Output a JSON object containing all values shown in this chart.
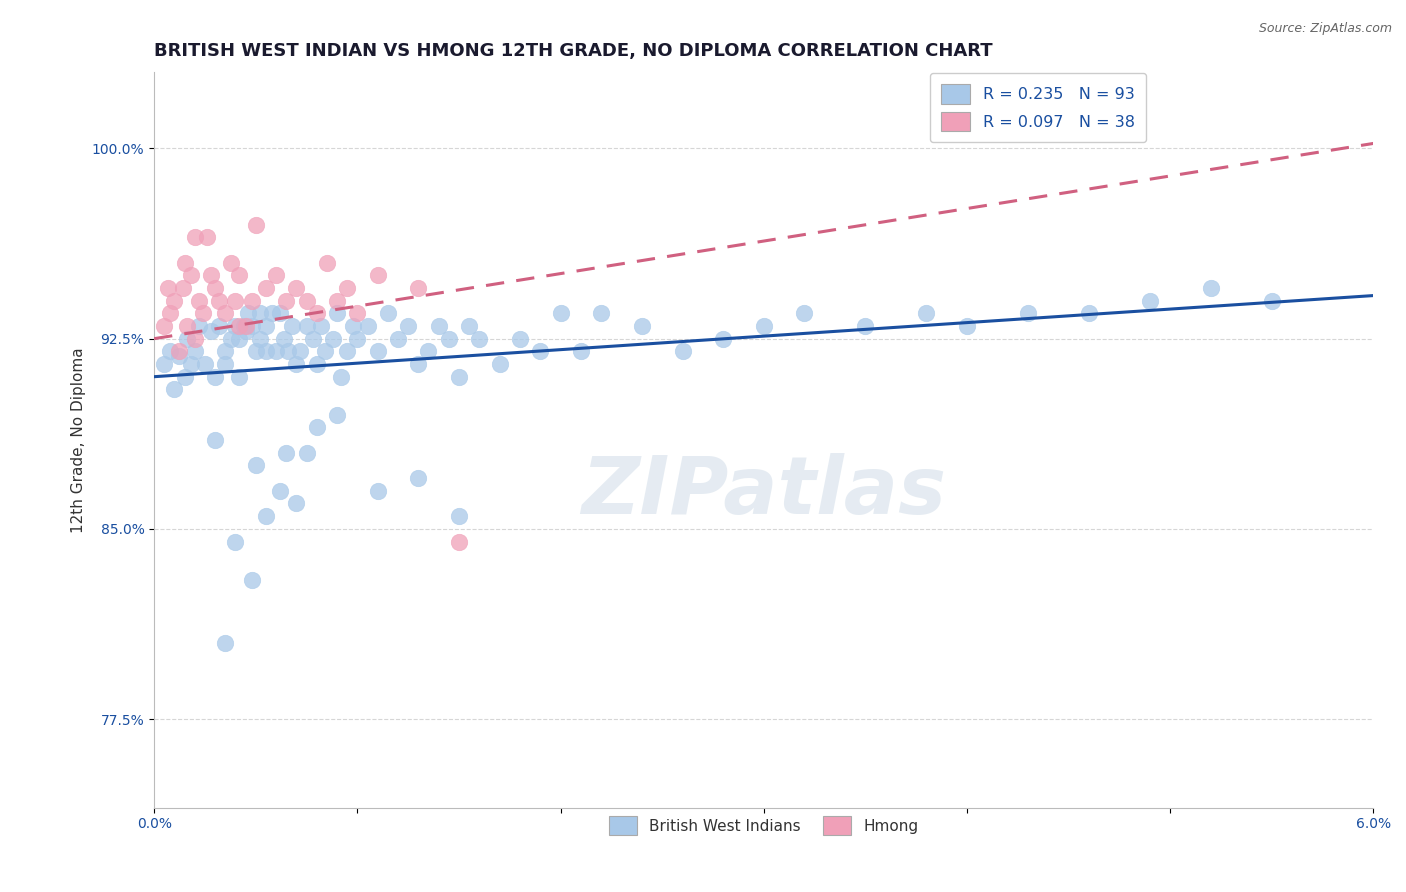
{
  "title": "BRITISH WEST INDIAN VS HMONG 12TH GRADE, NO DIPLOMA CORRELATION CHART",
  "source_text": "Source: ZipAtlas.com",
  "xlabel": "",
  "ylabel": "12th Grade, No Diploma",
  "xlim": [
    0.0,
    6.0
  ],
  "ylim": [
    74.0,
    103.0
  ],
  "yticks": [
    77.5,
    85.0,
    92.5,
    100.0
  ],
  "ytick_labels": [
    "77.5%",
    "85.0%",
    "92.5%",
    "100.0%"
  ],
  "xticks": [
    0.0,
    1.0,
    2.0,
    3.0,
    4.0,
    5.0,
    6.0
  ],
  "xtick_labels": [
    "0.0%",
    "",
    "",
    "",
    "",
    "",
    "6.0%"
  ],
  "legend_r1": "R = 0.235",
  "legend_n1": "N = 93",
  "legend_r2": "R = 0.097",
  "legend_n2": "N = 38",
  "legend_label1": "British West Indians",
  "legend_label2": "Hmong",
  "blue_color": "#A8C8E8",
  "pink_color": "#F0A0B8",
  "blue_line_color": "#1A4FA0",
  "pink_line_color": "#D06080",
  "text_blue": "#1A4FA0",
  "watermark": "ZIPatlas",
  "title_fontsize": 13,
  "axis_label_fontsize": 11,
  "tick_fontsize": 10,
  "blue_reg_x0": 0.0,
  "blue_reg_y0": 91.0,
  "blue_reg_x1": 6.0,
  "blue_reg_y1": 94.2,
  "pink_reg_x0": 0.0,
  "pink_reg_y0": 92.5,
  "pink_reg_x1": 6.0,
  "pink_reg_y1": 100.2,
  "blue_scatter_x": [
    0.05,
    0.08,
    0.1,
    0.12,
    0.15,
    0.16,
    0.18,
    0.2,
    0.22,
    0.25,
    0.28,
    0.3,
    0.32,
    0.35,
    0.35,
    0.38,
    0.4,
    0.42,
    0.42,
    0.44,
    0.45,
    0.46,
    0.48,
    0.5,
    0.52,
    0.52,
    0.55,
    0.55,
    0.58,
    0.6,
    0.62,
    0.64,
    0.66,
    0.68,
    0.7,
    0.72,
    0.75,
    0.78,
    0.8,
    0.82,
    0.84,
    0.88,
    0.9,
    0.92,
    0.95,
    0.98,
    1.0,
    1.05,
    1.1,
    1.15,
    1.2,
    1.25,
    1.3,
    1.35,
    1.4,
    1.45,
    1.5,
    1.55,
    1.6,
    1.7,
    1.8,
    1.9,
    2.0,
    2.1,
    2.2,
    2.4,
    2.6,
    2.8,
    3.0,
    3.2,
    3.5,
    3.8,
    4.0,
    4.3,
    4.6,
    4.9,
    5.2,
    5.5,
    0.3,
    0.5,
    0.65,
    0.8,
    0.4,
    0.55,
    0.7,
    0.35,
    0.48,
    0.62,
    0.75,
    0.9,
    1.1,
    1.3,
    1.5
  ],
  "blue_scatter_y": [
    91.5,
    92.0,
    90.5,
    91.8,
    91.0,
    92.5,
    91.5,
    92.0,
    93.0,
    91.5,
    92.8,
    91.0,
    93.0,
    92.0,
    91.5,
    92.5,
    93.0,
    91.0,
    92.5,
    93.0,
    92.8,
    93.5,
    93.0,
    92.0,
    93.5,
    92.5,
    92.0,
    93.0,
    93.5,
    92.0,
    93.5,
    92.5,
    92.0,
    93.0,
    91.5,
    92.0,
    93.0,
    92.5,
    91.5,
    93.0,
    92.0,
    92.5,
    93.5,
    91.0,
    92.0,
    93.0,
    92.5,
    93.0,
    92.0,
    93.5,
    92.5,
    93.0,
    91.5,
    92.0,
    93.0,
    92.5,
    91.0,
    93.0,
    92.5,
    91.5,
    92.5,
    92.0,
    93.5,
    92.0,
    93.5,
    93.0,
    92.0,
    92.5,
    93.0,
    93.5,
    93.0,
    93.5,
    93.0,
    93.5,
    93.5,
    94.0,
    94.5,
    94.0,
    88.5,
    87.5,
    88.0,
    89.0,
    84.5,
    85.5,
    86.0,
    80.5,
    83.0,
    86.5,
    88.0,
    89.5,
    86.5,
    87.0,
    85.5
  ],
  "pink_scatter_x": [
    0.05,
    0.07,
    0.08,
    0.1,
    0.12,
    0.14,
    0.15,
    0.16,
    0.18,
    0.2,
    0.2,
    0.22,
    0.24,
    0.26,
    0.28,
    0.3,
    0.32,
    0.35,
    0.38,
    0.4,
    0.42,
    0.42,
    0.45,
    0.48,
    0.5,
    0.55,
    0.6,
    0.65,
    0.7,
    0.75,
    0.8,
    0.85,
    0.9,
    0.95,
    1.0,
    1.1,
    1.3,
    1.5
  ],
  "pink_scatter_y": [
    93.0,
    94.5,
    93.5,
    94.0,
    92.0,
    94.5,
    95.5,
    93.0,
    95.0,
    92.5,
    96.5,
    94.0,
    93.5,
    96.5,
    95.0,
    94.5,
    94.0,
    93.5,
    95.5,
    94.0,
    93.0,
    95.0,
    93.0,
    94.0,
    97.0,
    94.5,
    95.0,
    94.0,
    94.5,
    94.0,
    93.5,
    95.5,
    94.0,
    94.5,
    93.5,
    95.0,
    94.5,
    84.5
  ]
}
